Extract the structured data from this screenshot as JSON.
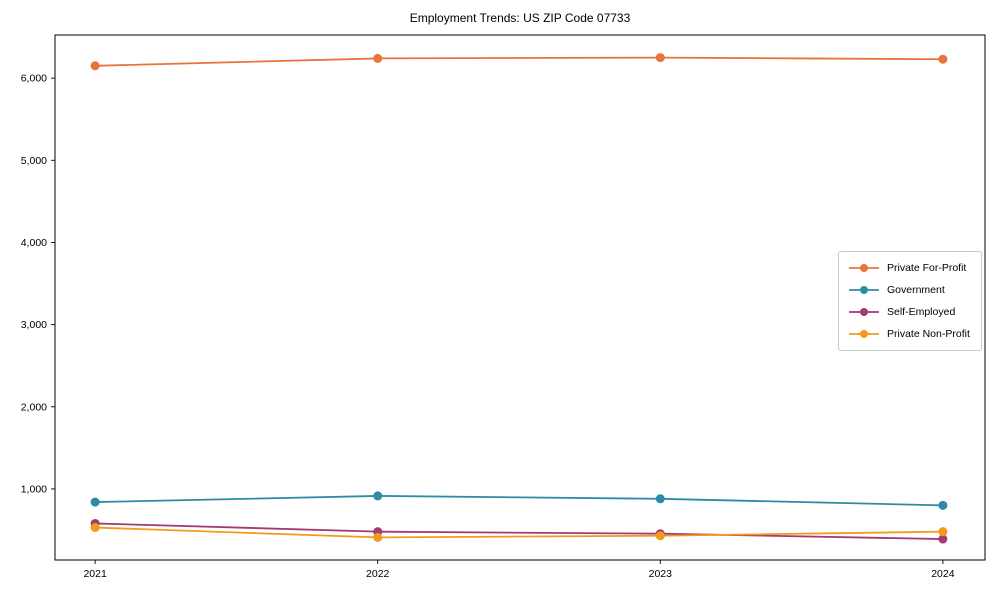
{
  "title": "Employment Trends: US ZIP Code 07733",
  "chart_data": {
    "type": "line",
    "x": [
      2021,
      2022,
      2023,
      2024
    ],
    "x_labels": [
      "2021",
      "2022",
      "2023",
      "2024"
    ],
    "series": [
      {
        "name": "Private For-Profit",
        "color": "#e8743b",
        "values": [
          6150,
          6240,
          6250,
          6230
        ]
      },
      {
        "name": "Government",
        "color": "#2e8ba8",
        "values": [
          840,
          915,
          880,
          800
        ]
      },
      {
        "name": "Self-Employed",
        "color": "#a23b72",
        "values": [
          580,
          480,
          455,
          390
        ]
      },
      {
        "name": "Private Non-Profit",
        "color": "#f09b1c",
        "values": [
          530,
          410,
          430,
          480
        ]
      }
    ],
    "title": "Employment Trends: US ZIP Code 07733",
    "xlabel": "",
    "ylabel": "",
    "ylim": [
      135,
      6525
    ],
    "xlim": [
      2020.858,
      2024.149
    ],
    "yticks": [
      1000,
      2000,
      3000,
      4000,
      5000,
      6000
    ],
    "ytick_labels": [
      "1,000",
      "2,000",
      "3,000",
      "4,000",
      "5,000",
      "6,000"
    ],
    "grid": false,
    "legend_position": "center-right",
    "axis_color": "#000000",
    "background_color": "#ffffff"
  }
}
